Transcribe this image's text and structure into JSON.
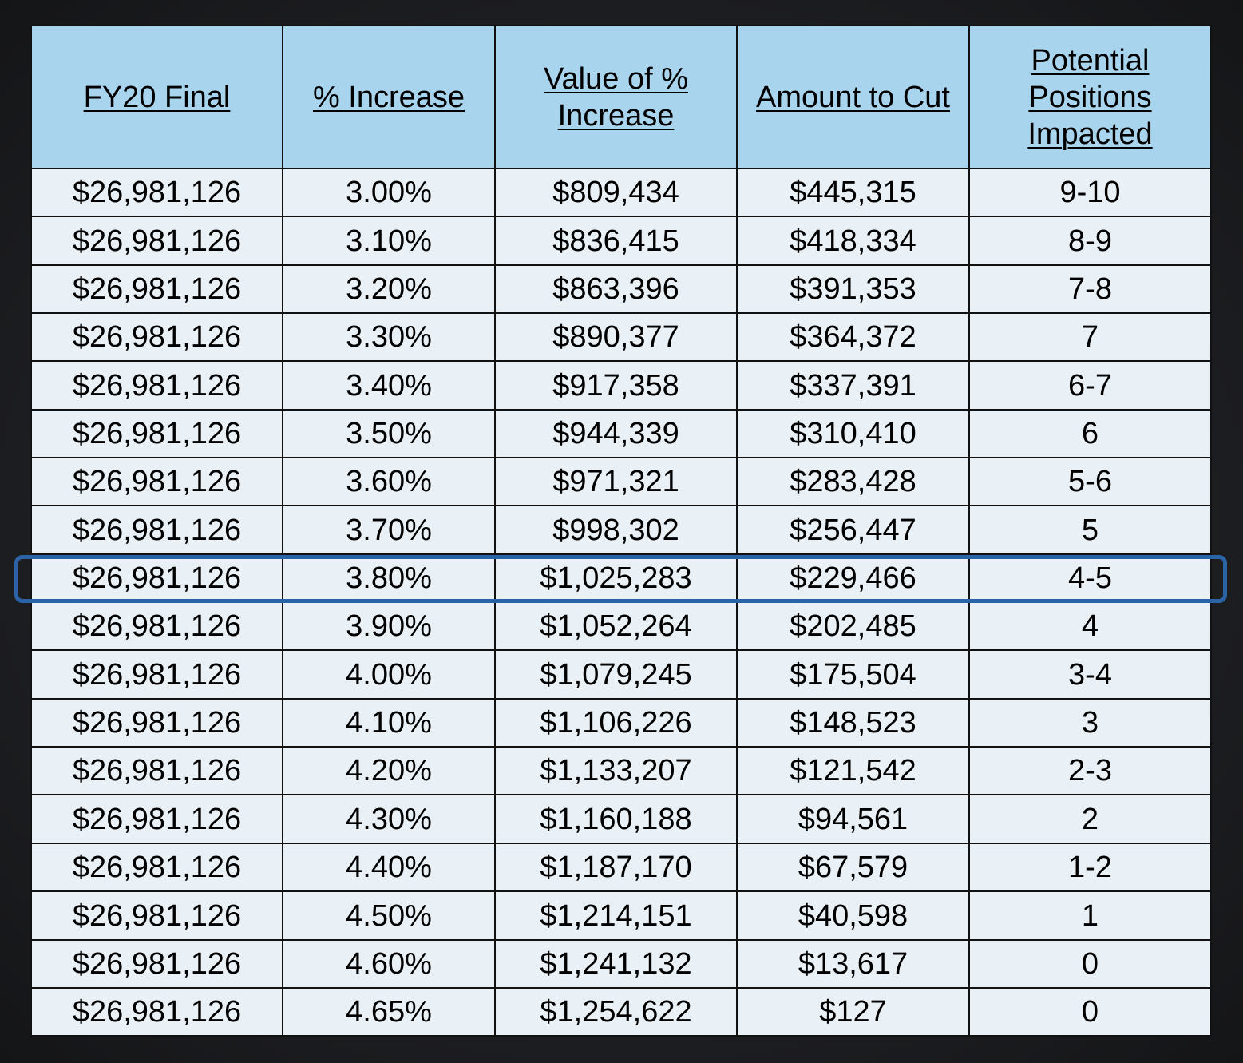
{
  "table": {
    "headers": [
      "FY20 Final",
      "% Increase",
      "Value of % Increase",
      "Amount to Cut",
      "Potential Positions Impacted"
    ],
    "rows": [
      [
        "$26,981,126",
        "3.00%",
        "$809,434",
        "$445,315",
        "9-10"
      ],
      [
        "$26,981,126",
        "3.10%",
        "$836,415",
        "$418,334",
        "8-9"
      ],
      [
        "$26,981,126",
        "3.20%",
        "$863,396",
        "$391,353",
        "7-8"
      ],
      [
        "$26,981,126",
        "3.30%",
        "$890,377",
        "$364,372",
        "7"
      ],
      [
        "$26,981,126",
        "3.40%",
        "$917,358",
        "$337,391",
        "6-7"
      ],
      [
        "$26,981,126",
        "3.50%",
        "$944,339",
        "$310,410",
        "6"
      ],
      [
        "$26,981,126",
        "3.60%",
        "$971,321",
        "$283,428",
        "5-6"
      ],
      [
        "$26,981,126",
        "3.70%",
        "$998,302",
        "$256,447",
        "5"
      ],
      [
        "$26,981,126",
        "3.80%",
        "$1,025,283",
        "$229,466",
        "4-5"
      ],
      [
        "$26,981,126",
        "3.90%",
        "$1,052,264",
        "$202,485",
        "4"
      ],
      [
        "$26,981,126",
        "4.00%",
        "$1,079,245",
        "$175,504",
        "3-4"
      ],
      [
        "$26,981,126",
        "4.10%",
        "$1,106,226",
        "$148,523",
        "3"
      ],
      [
        "$26,981,126",
        "4.20%",
        "$1,133,207",
        "$121,542",
        "2-3"
      ],
      [
        "$26,981,126",
        "4.30%",
        "$1,160,188",
        "$94,561",
        "2"
      ],
      [
        "$26,981,126",
        "4.40%",
        "$1,187,170",
        "$67,579",
        "1-2"
      ],
      [
        "$26,981,126",
        "4.50%",
        "$1,214,151",
        "$40,598",
        "1"
      ],
      [
        "$26,981,126",
        "4.60%",
        "$1,241,132",
        "$13,617",
        "0"
      ],
      [
        "$26,981,126",
        "4.65%",
        "$1,254,622",
        "$127",
        "0"
      ]
    ],
    "highlighted_row": 8
  },
  "colors": {
    "header_bg": "#a9d4ee",
    "cell_bg": "#eaf1f6",
    "highlight_border": "#2b63a6"
  }
}
